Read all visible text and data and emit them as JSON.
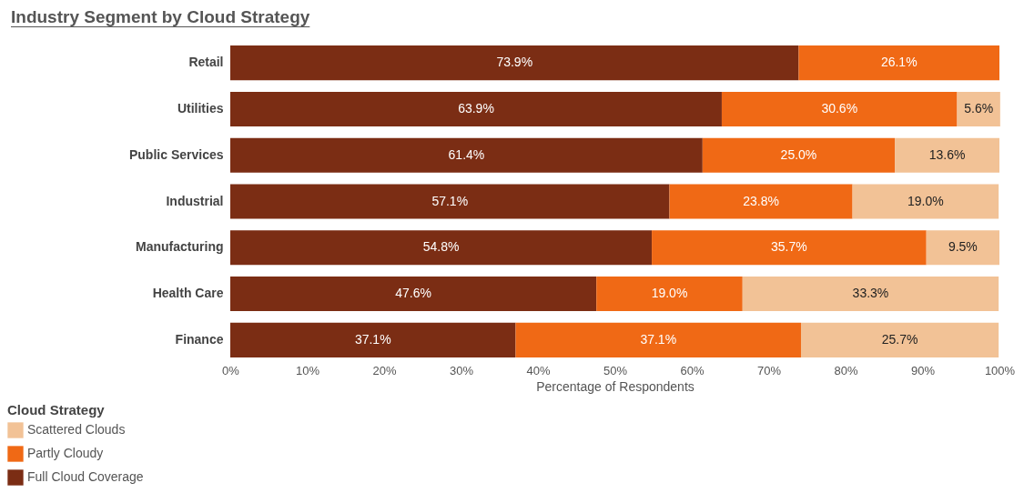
{
  "chart_data": {
    "type": "bar",
    "title": "Industry Segment by Cloud Strategy",
    "xlabel": "Percentage of Respondents",
    "legend_title": "Cloud Strategy",
    "orientation": "horizontal",
    "stacked": true,
    "legend": "bottom left",
    "grid": false,
    "categories": [
      "Retail",
      "Utilities",
      "Public Services",
      "Industrial",
      "Manufacturing",
      "Health Care",
      "Finance"
    ],
    "xlim": [
      0,
      100
    ],
    "xticks": [
      {
        "value": 0,
        "label": "0%"
      },
      {
        "value": 10,
        "label": "10%"
      },
      {
        "value": 20,
        "label": "20%"
      },
      {
        "value": 30,
        "label": "30%"
      },
      {
        "value": 40,
        "label": "40%"
      },
      {
        "value": 50,
        "label": "50%"
      },
      {
        "value": 60,
        "label": "60%"
      },
      {
        "value": 70,
        "label": "70%"
      },
      {
        "value": 80,
        "label": "80%"
      },
      {
        "value": 90,
        "label": "90%"
      },
      {
        "value": 100,
        "label": "100%"
      }
    ],
    "series": [
      {
        "name": "Full Cloud Coverage",
        "color": "#7b2d14",
        "values": [
          73.9,
          63.9,
          61.4,
          57.1,
          54.8,
          47.6,
          37.1
        ],
        "value_labels": [
          "73.9%",
          "63.9%",
          "61.4%",
          "57.1%",
          "54.8%",
          "47.6%",
          "37.1%"
        ]
      },
      {
        "name": "Partly Cloudy",
        "color": "#f06915",
        "values": [
          26.1,
          30.6,
          25.0,
          23.8,
          35.7,
          19.0,
          37.1
        ],
        "value_labels": [
          "26.1%",
          "30.6%",
          "25.0%",
          "23.8%",
          "35.7%",
          "19.0%",
          "37.1%"
        ]
      },
      {
        "name": "Scattered Clouds",
        "color": "#f2c296",
        "values": [
          null,
          5.6,
          13.6,
          19.0,
          9.5,
          33.3,
          25.7
        ],
        "value_labels": [
          null,
          "5.6%",
          "13.6%",
          "19.0%",
          "9.5%",
          "33.3%",
          "25.7%"
        ]
      }
    ]
  }
}
